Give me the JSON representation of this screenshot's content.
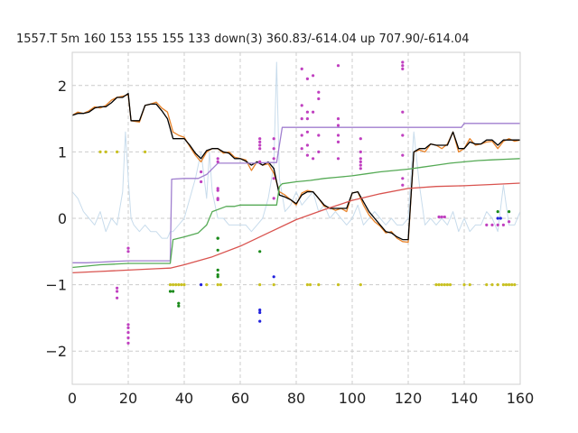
{
  "chart_data": {
    "type": "line",
    "title": "1557.T 5m 160 153 155 155 133  down(3) 360.83/-614.04 up 707.90/-614.04",
    "xlabel": "",
    "ylabel": "",
    "xlim": [
      0,
      160
    ],
    "ylim": [
      -2.5,
      2.5
    ],
    "x_ticks": [
      0,
      20,
      40,
      60,
      80,
      100,
      120,
      140,
      160
    ],
    "y_ticks": [
      -2,
      -1,
      0,
      1,
      2
    ],
    "grid": true,
    "legend": "none",
    "series": [
      {
        "color": "#c8dcec",
        "style": "line",
        "x": [
          0,
          2,
          4,
          6,
          8,
          10,
          12,
          14,
          16,
          18,
          19,
          20,
          21,
          22,
          24,
          26,
          28,
          30,
          32,
          34,
          35,
          36,
          38,
          40,
          42,
          44,
          46,
          48,
          49,
          50,
          52,
          54,
          56,
          58,
          60,
          62,
          64,
          66,
          68,
          70,
          72,
          73,
          74,
          76,
          78,
          80,
          82,
          84,
          86,
          88,
          90,
          92,
          94,
          96,
          98,
          100,
          102,
          104,
          106,
          108,
          110,
          112,
          114,
          116,
          118,
          120,
          122,
          124,
          126,
          128,
          130,
          132,
          134,
          136,
          138,
          140,
          142,
          144,
          146,
          148,
          150,
          152,
          154,
          156,
          158,
          160
        ],
        "y": [
          0.4,
          0.3,
          0.1,
          0.0,
          -0.1,
          0.1,
          -0.2,
          0.0,
          -0.1,
          0.4,
          1.3,
          0.6,
          0.0,
          -0.1,
          -0.2,
          -0.1,
          -0.2,
          -0.2,
          -0.3,
          -0.3,
          -0.2,
          -0.2,
          -0.1,
          0.0,
          0.3,
          0.6,
          1.0,
          0.3,
          1.0,
          0.4,
          0.0,
          0.0,
          -0.1,
          -0.1,
          -0.1,
          -0.1,
          -0.2,
          -0.1,
          0.0,
          0.3,
          0.8,
          2.35,
          0.6,
          0.1,
          0.2,
          0.4,
          0.2,
          0.3,
          0.4,
          0.1,
          0.2,
          0.0,
          0.1,
          0.0,
          -0.1,
          0.0,
          0.2,
          -0.1,
          0.0,
          0.1,
          0.0,
          -0.1,
          0.0,
          -0.1,
          -0.1,
          0.0,
          1.3,
          0.5,
          -0.1,
          0.0,
          -0.1,
          0.0,
          -0.1,
          0.1,
          -0.2,
          0.0,
          -0.2,
          -0.1,
          -0.1,
          0.1,
          0.0,
          -0.2,
          0.5,
          -0.1,
          -0.1,
          0.1
        ]
      },
      {
        "color": "#e8832a",
        "style": "line",
        "x": [
          0,
          2,
          4,
          6,
          8,
          10,
          12,
          14,
          16,
          18,
          20,
          21,
          24,
          26,
          28,
          30,
          32,
          34,
          36,
          38,
          40,
          42,
          44,
          46,
          48,
          50,
          52,
          54,
          56,
          58,
          60,
          62,
          64,
          66,
          68,
          70,
          72,
          74,
          76,
          78,
          80,
          82,
          84,
          86,
          88,
          90,
          92,
          94,
          96,
          98,
          100,
          102,
          104,
          106,
          108,
          110,
          112,
          114,
          116,
          118,
          120,
          122,
          124,
          126,
          128,
          130,
          132,
          134,
          136,
          138,
          140,
          142,
          144,
          146,
          148,
          150,
          152,
          154,
          156,
          158,
          160
        ],
        "y": [
          1.55,
          1.6,
          1.58,
          1.62,
          1.68,
          1.66,
          1.7,
          1.78,
          1.82,
          1.84,
          1.86,
          1.47,
          1.45,
          1.7,
          1.72,
          1.75,
          1.66,
          1.6,
          1.3,
          1.25,
          1.22,
          1.08,
          0.95,
          0.85,
          1.0,
          1.05,
          1.05,
          0.98,
          1.0,
          0.92,
          0.9,
          0.88,
          0.72,
          0.85,
          0.8,
          0.82,
          0.68,
          0.4,
          0.35,
          0.28,
          0.2,
          0.38,
          0.42,
          0.4,
          0.3,
          0.18,
          0.16,
          0.12,
          0.15,
          0.1,
          0.38,
          0.4,
          0.2,
          0.05,
          -0.05,
          -0.12,
          -0.22,
          -0.2,
          -0.3,
          -0.35,
          -0.36,
          1.0,
          1.03,
          1.0,
          1.12,
          1.1,
          1.05,
          1.12,
          1.3,
          1.0,
          1.05,
          1.2,
          1.1,
          1.12,
          1.15,
          1.16,
          1.05,
          1.16,
          1.2,
          1.16,
          1.18
        ]
      },
      {
        "color": "#000000",
        "style": "line",
        "x": [
          0,
          2,
          4,
          6,
          8,
          10,
          12,
          14,
          16,
          18,
          20,
          21,
          24,
          26,
          28,
          30,
          32,
          34,
          36,
          38,
          40,
          42,
          44,
          46,
          48,
          50,
          52,
          54,
          56,
          58,
          60,
          62,
          64,
          66,
          68,
          70,
          72,
          74,
          76,
          78,
          80,
          82,
          84,
          86,
          88,
          90,
          92,
          94,
          96,
          98,
          100,
          102,
          104,
          106,
          108,
          110,
          112,
          114,
          116,
          118,
          120,
          122,
          124,
          126,
          128,
          130,
          132,
          134,
          136,
          138,
          140,
          142,
          144,
          146,
          148,
          150,
          152,
          154,
          156,
          158,
          160
        ],
        "y": [
          1.55,
          1.58,
          1.58,
          1.6,
          1.66,
          1.68,
          1.68,
          1.74,
          1.82,
          1.82,
          1.88,
          1.47,
          1.47,
          1.7,
          1.72,
          1.72,
          1.62,
          1.5,
          1.2,
          1.2,
          1.2,
          1.1,
          0.98,
          0.9,
          1.02,
          1.05,
          1.05,
          1.0,
          0.98,
          0.9,
          0.9,
          0.86,
          0.8,
          0.85,
          0.8,
          0.85,
          0.75,
          0.35,
          0.32,
          0.28,
          0.22,
          0.35,
          0.4,
          0.4,
          0.3,
          0.2,
          0.15,
          0.15,
          0.15,
          0.15,
          0.38,
          0.4,
          0.25,
          0.1,
          0.0,
          -0.1,
          -0.2,
          -0.22,
          -0.28,
          -0.32,
          -0.32,
          1.0,
          1.05,
          1.05,
          1.12,
          1.1,
          1.1,
          1.1,
          1.3,
          1.05,
          1.05,
          1.15,
          1.12,
          1.12,
          1.18,
          1.18,
          1.1,
          1.18,
          1.18,
          1.18,
          1.18
        ]
      },
      {
        "color": "#a07fcf",
        "style": "line",
        "x": [
          0,
          5,
          10,
          15,
          20,
          25,
          30,
          35,
          35.5,
          40,
          45,
          48,
          52,
          55,
          60,
          65,
          70,
          73,
          75,
          80,
          85,
          90,
          95,
          100,
          105,
          110,
          115,
          120,
          125,
          130,
          135,
          139,
          140,
          145,
          150,
          155,
          160
        ],
        "y": [
          -0.67,
          -0.67,
          -0.66,
          -0.65,
          -0.64,
          -0.64,
          -0.64,
          -0.64,
          0.59,
          0.6,
          0.6,
          0.66,
          0.83,
          0.83,
          0.83,
          0.83,
          0.84,
          0.84,
          1.37,
          1.37,
          1.37,
          1.37,
          1.37,
          1.37,
          1.37,
          1.37,
          1.37,
          1.37,
          1.37,
          1.37,
          1.37,
          1.37,
          1.43,
          1.43,
          1.43,
          1.43,
          1.43
        ]
      },
      {
        "color": "#55aa55",
        "style": "line",
        "x": [
          0,
          5,
          10,
          15,
          20,
          25,
          30,
          35,
          36,
          40,
          45,
          48,
          50,
          55,
          58,
          60,
          65,
          70,
          73,
          74,
          75,
          80,
          85,
          90,
          95,
          100,
          105,
          110,
          115,
          120,
          125,
          130,
          135,
          140,
          145,
          150,
          155,
          160
        ],
        "y": [
          -0.74,
          -0.72,
          -0.7,
          -0.69,
          -0.68,
          -0.68,
          -0.68,
          -0.68,
          -0.32,
          -0.28,
          -0.22,
          -0.1,
          0.1,
          0.18,
          0.18,
          0.2,
          0.2,
          0.2,
          0.2,
          0.48,
          0.52,
          0.55,
          0.57,
          0.6,
          0.62,
          0.64,
          0.67,
          0.7,
          0.72,
          0.74,
          0.77,
          0.8,
          0.83,
          0.85,
          0.87,
          0.88,
          0.89,
          0.9
        ]
      },
      {
        "color": "#d9534f",
        "style": "line",
        "x": [
          0,
          10,
          20,
          30,
          35,
          40,
          50,
          60,
          70,
          80,
          90,
          100,
          110,
          120,
          130,
          140,
          150,
          160
        ],
        "y": [
          -0.82,
          -0.8,
          -0.78,
          -0.76,
          -0.75,
          -0.7,
          -0.58,
          -0.42,
          -0.22,
          -0.02,
          0.13,
          0.27,
          0.37,
          0.45,
          0.48,
          0.49,
          0.51,
          0.53
        ]
      },
      {
        "color": "#c040c0",
        "style": "scatter",
        "x": [
          20,
          20,
          20,
          20,
          20,
          20,
          20,
          16,
          16,
          16,
          46,
          46,
          52,
          52,
          52,
          52,
          52,
          52,
          67,
          67,
          67,
          67,
          67,
          72,
          72,
          72,
          72,
          72,
          82,
          82,
          82,
          82,
          82,
          84,
          84,
          84,
          84,
          84,
          84,
          86,
          86,
          86,
          88,
          88,
          88,
          88,
          95,
          95,
          95,
          95,
          95,
          95,
          103,
          103,
          103,
          103,
          103,
          103,
          118,
          118,
          118,
          118,
          118,
          118,
          118,
          118,
          131,
          131,
          132,
          133,
          148,
          150,
          152,
          154,
          156
        ],
        "y": [
          -0.45,
          -0.5,
          -1.6,
          -1.65,
          -1.72,
          -1.8,
          -1.88,
          -1.05,
          -1.1,
          -1.2,
          0.7,
          0.55,
          0.85,
          0.9,
          0.45,
          0.42,
          0.3,
          0.28,
          1.2,
          1.15,
          1.1,
          1.05,
          0.85,
          0.6,
          0.3,
          1.2,
          1.05,
          0.9,
          2.25,
          1.7,
          1.5,
          1.25,
          1.05,
          2.1,
          1.6,
          1.5,
          1.3,
          1.1,
          0.95,
          2.15,
          1.6,
          0.9,
          1.9,
          1.8,
          1.25,
          1.0,
          2.3,
          1.5,
          1.4,
          1.15,
          0.9,
          1.25,
          1.2,
          1.0,
          0.9,
          0.85,
          0.8,
          0.75,
          2.35,
          2.3,
          2.25,
          1.6,
          1.25,
          0.95,
          0.6,
          0.5,
          0.02,
          0.02,
          0.02,
          0.02,
          -0.1,
          -0.1,
          -0.1,
          -0.1,
          -0.05
        ]
      },
      {
        "color": "#c8c020",
        "style": "scatter",
        "x": [
          10,
          12,
          16,
          26,
          35,
          36,
          37,
          38,
          39,
          40,
          48,
          52,
          53,
          67,
          72,
          84,
          85,
          88,
          95,
          103,
          130,
          131,
          132,
          133,
          134,
          135,
          140,
          142,
          148,
          150,
          152,
          154,
          155,
          156,
          157,
          158
        ],
        "y": [
          1.0,
          1.0,
          1.0,
          1.0,
          -1.0,
          -1.0,
          -1.0,
          -1.0,
          -1.0,
          -1.0,
          -1.0,
          -1.0,
          -1.0,
          -1.0,
          -1.0,
          -1.0,
          -1.0,
          -1.0,
          -1.0,
          -1.0,
          -1.0,
          -1.0,
          -1.0,
          -1.0,
          -1.0,
          -1.0,
          -1.0,
          -1.0,
          -1.0,
          -1.0,
          -1.0,
          -1.0,
          -1.0,
          -1.0,
          -1.0,
          -1.0
        ]
      },
      {
        "color": "#1a8a1a",
        "style": "scatter",
        "x": [
          35,
          36,
          38,
          38,
          52,
          52,
          52,
          52,
          52,
          52,
          67,
          152,
          156
        ],
        "y": [
          -1.1,
          -1.1,
          -1.28,
          -1.32,
          -0.3,
          -0.3,
          -0.48,
          -0.78,
          -0.85,
          -0.88,
          -0.5,
          0.1,
          0.1
        ]
      },
      {
        "color": "#2222dd",
        "style": "scatter",
        "x": [
          46,
          67,
          67,
          67,
          72,
          152,
          153
        ],
        "y": [
          -1.0,
          -1.38,
          -1.42,
          -1.55,
          -0.88,
          0.0,
          0.0
        ]
      }
    ]
  }
}
